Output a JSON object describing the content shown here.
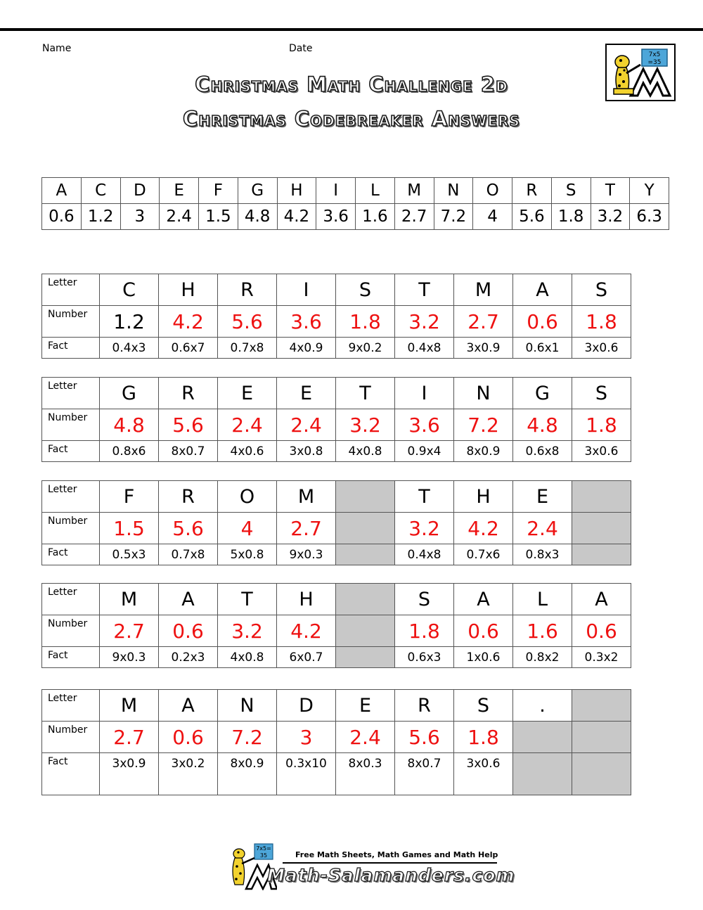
{
  "header": {
    "name_label": "Name",
    "date_label": "Date",
    "title_line1": "Christmas Math Challenge 2d",
    "title_line2": "Christmas Codebreaker Answers",
    "logo_card_line1": "7x5",
    "logo_card_line2": "=35"
  },
  "key": {
    "letters": [
      "A",
      "C",
      "D",
      "E",
      "F",
      "G",
      "H",
      "I",
      "L",
      "M",
      "N",
      "O",
      "R",
      "S",
      "T",
      "Y"
    ],
    "numbers": [
      "0.6",
      "1.2",
      "3",
      "2.4",
      "1.5",
      "4.8",
      "4.2",
      "3.6",
      "1.6",
      "2.7",
      "7.2",
      "4",
      "5.6",
      "1.8",
      "3.2",
      "6.3"
    ]
  },
  "row_labels": {
    "letter": "Letter",
    "number": "Number",
    "fact": "Fact"
  },
  "puzzles": [
    {
      "letters": [
        "C",
        "H",
        "R",
        "I",
        "S",
        "T",
        "M",
        "A",
        "S"
      ],
      "numbers": [
        "1.2",
        "4.2",
        "5.6",
        "3.6",
        "1.8",
        "3.2",
        "2.7",
        "0.6",
        "1.8"
      ],
      "facts": [
        "0.4x3",
        "0.6x7",
        "0.7x8",
        "4x0.9",
        "9x0.2",
        "0.4x8",
        "3x0.9",
        "0.6x1",
        "3x0.6"
      ]
    },
    {
      "letters": [
        "G",
        "R",
        "E",
        "E",
        "T",
        "I",
        "N",
        "G",
        "S"
      ],
      "numbers": [
        "4.8",
        "5.6",
        "2.4",
        "2.4",
        "3.2",
        "3.6",
        "7.2",
        "4.8",
        "1.8"
      ],
      "facts": [
        "0.8x6",
        "8x0.7",
        "4x0.6",
        "3x0.8",
        "4x0.8",
        "0.9x4",
        "8x0.9",
        "0.6x8",
        "3x0.6"
      ]
    },
    {
      "letters": [
        "F",
        "R",
        "O",
        "M",
        "",
        "T",
        "H",
        "E",
        ""
      ],
      "numbers": [
        "1.5",
        "5.6",
        "4",
        "2.7",
        "",
        "3.2",
        "4.2",
        "2.4",
        ""
      ],
      "facts": [
        "0.5x3",
        "0.7x8",
        "5x0.8",
        "9x0.3",
        "",
        "0.4x8",
        "0.7x6",
        "0.8x3",
        ""
      ]
    },
    {
      "letters": [
        "M",
        "A",
        "T",
        "H",
        "",
        "S",
        "A",
        "L",
        "A"
      ],
      "numbers": [
        "2.7",
        "0.6",
        "3.2",
        "4.2",
        "",
        "1.8",
        "0.6",
        "1.6",
        "0.6"
      ],
      "facts": [
        "9x0.3",
        "0.2x3",
        "4x0.8",
        "6x0.7",
        "",
        "0.6x3",
        "1x0.6",
        "0.8x2",
        "0.3x2"
      ]
    },
    {
      "letters": [
        "M",
        "A",
        "N",
        "D",
        "E",
        "R",
        "S",
        ".",
        ""
      ],
      "numbers": [
        "2.7",
        "0.6",
        "7.2",
        "3",
        "2.4",
        "5.6",
        "1.8",
        "",
        ""
      ],
      "facts": [
        "3x0.9",
        "3x0.2",
        "8x0.9",
        "0.3x10",
        "8x0.3",
        "8x0.7",
        "3x0.6",
        "",
        ""
      ]
    }
  ],
  "footer": {
    "tagline": "Free Math Sheets, Math Games and Math Help",
    "site": "Math-Salamanders.com",
    "logo_card_line1": "7x5=",
    "logo_card_line2": "35"
  },
  "colors": {
    "answer_red": "#ee1111",
    "blank_grey": "#c8c8c8"
  }
}
